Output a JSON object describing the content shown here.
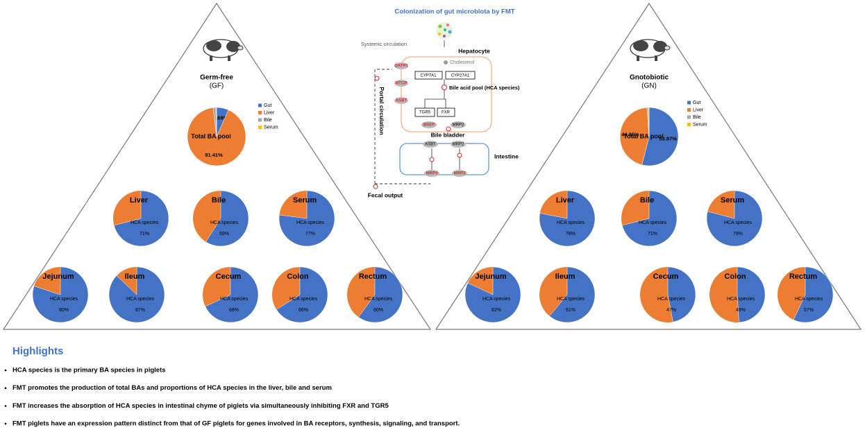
{
  "title": "Colonization of gut microbiota by FMT",
  "panels": [
    {
      "name": "Germ-free",
      "abbr": "(GF)",
      "total_pool": {
        "type": "pie",
        "label": "Total BA pool",
        "categories": [
          "Gut",
          "Liver",
          "Bile",
          "Serum"
        ],
        "colors": [
          "#4472c4",
          "#ed7d31",
          "#a5a5a5",
          "#ffc000"
        ],
        "values": [
          6.68,
          91.41,
          1.5,
          0.41
        ],
        "value_labels": [
          "6.68%",
          "91.41%",
          null,
          null
        ]
      },
      "tissue_label": "HCA species",
      "tissues": [
        {
          "name": "Liver",
          "value": 71,
          "value_label": "71%"
        },
        {
          "name": "Bile",
          "value": 59,
          "value_label": "59%"
        },
        {
          "name": "Serum",
          "value": 77,
          "value_label": "77%"
        },
        {
          "name": "Jejunum",
          "value": 80,
          "value_label": "80%"
        },
        {
          "name": "Ileum",
          "value": 87,
          "value_label": "87%"
        },
        {
          "name": "Cecum",
          "value": 68,
          "value_label": "68%"
        },
        {
          "name": "Colon",
          "value": 66,
          "value_label": "66%"
        },
        {
          "name": "Rectum",
          "value": 60,
          "value_label": "60%"
        }
      ]
    },
    {
      "name": "Gnotobiotic",
      "abbr": "(GN)",
      "total_pool": {
        "type": "pie",
        "label": "Total BA pool",
        "categories": [
          "Gut",
          "Liver",
          "Bile",
          "Serum"
        ],
        "colors": [
          "#4472c4",
          "#ed7d31",
          "#a5a5a5",
          "#ffc000"
        ],
        "values": [
          53.97,
          44.85,
          0.8,
          0.38
        ],
        "value_labels": [
          "53.97%",
          "44.85%",
          null,
          null
        ]
      },
      "tissue_label": "HCA species",
      "tissues": [
        {
          "name": "Liver",
          "value": 78,
          "value_label": "78%"
        },
        {
          "name": "Bile",
          "value": 71,
          "value_label": "71%"
        },
        {
          "name": "Serum",
          "value": 79,
          "value_label": "79%"
        },
        {
          "name": "Jejunum",
          "value": 82,
          "value_label": "82%"
        },
        {
          "name": "Ileum",
          "value": 61,
          "value_label": "61%"
        },
        {
          "name": "Cecum",
          "value": 47,
          "value_label": "47%"
        },
        {
          "name": "Colon",
          "value": 49,
          "value_label": "49%"
        },
        {
          "name": "Rectum",
          "value": 57,
          "value_label": "57%"
        }
      ]
    }
  ],
  "diagram": {
    "systemic": "Systemic circulation",
    "hepatocyte": "Hepatocyte",
    "cholesterol": "Cholesterol",
    "oatp1": "OATP1",
    "ntcp": "NTCP",
    "asbt_liver": "ASBT",
    "cyp7a1": "CYP7A1",
    "cyp27a1": "CYP27A1",
    "pool": "Bile acid pool (HCA species)",
    "tgr5": "TGR5",
    "fxr": "FXR",
    "bsep": "BSEP",
    "mrp2_liver": "MRP2",
    "bladder": "Bile bladder",
    "asbt_int": "ASBT",
    "mrp2_int": "MRP2",
    "intestine": "Intestine",
    "mrp4": "MRP4",
    "mrp3": "MRP3",
    "portal": "Portal circulation",
    "fecal": "Fecal output"
  },
  "highlights": {
    "heading": "Highlights",
    "items": [
      "HCA species is the primary BA species in piglets",
      "FMT promotes the production of total BAs and proportions of HCA species in the liver, bile and serum",
      "FMT increases the absorption of HCA species in intestinal chyme of piglets via simultaneously inhibiting FXR and TGR5",
      "FMT piglets have an expression pattern distinct from that of GF piglets for genes involved in BA receptors, synthesis, signaling, and transport."
    ]
  }
}
